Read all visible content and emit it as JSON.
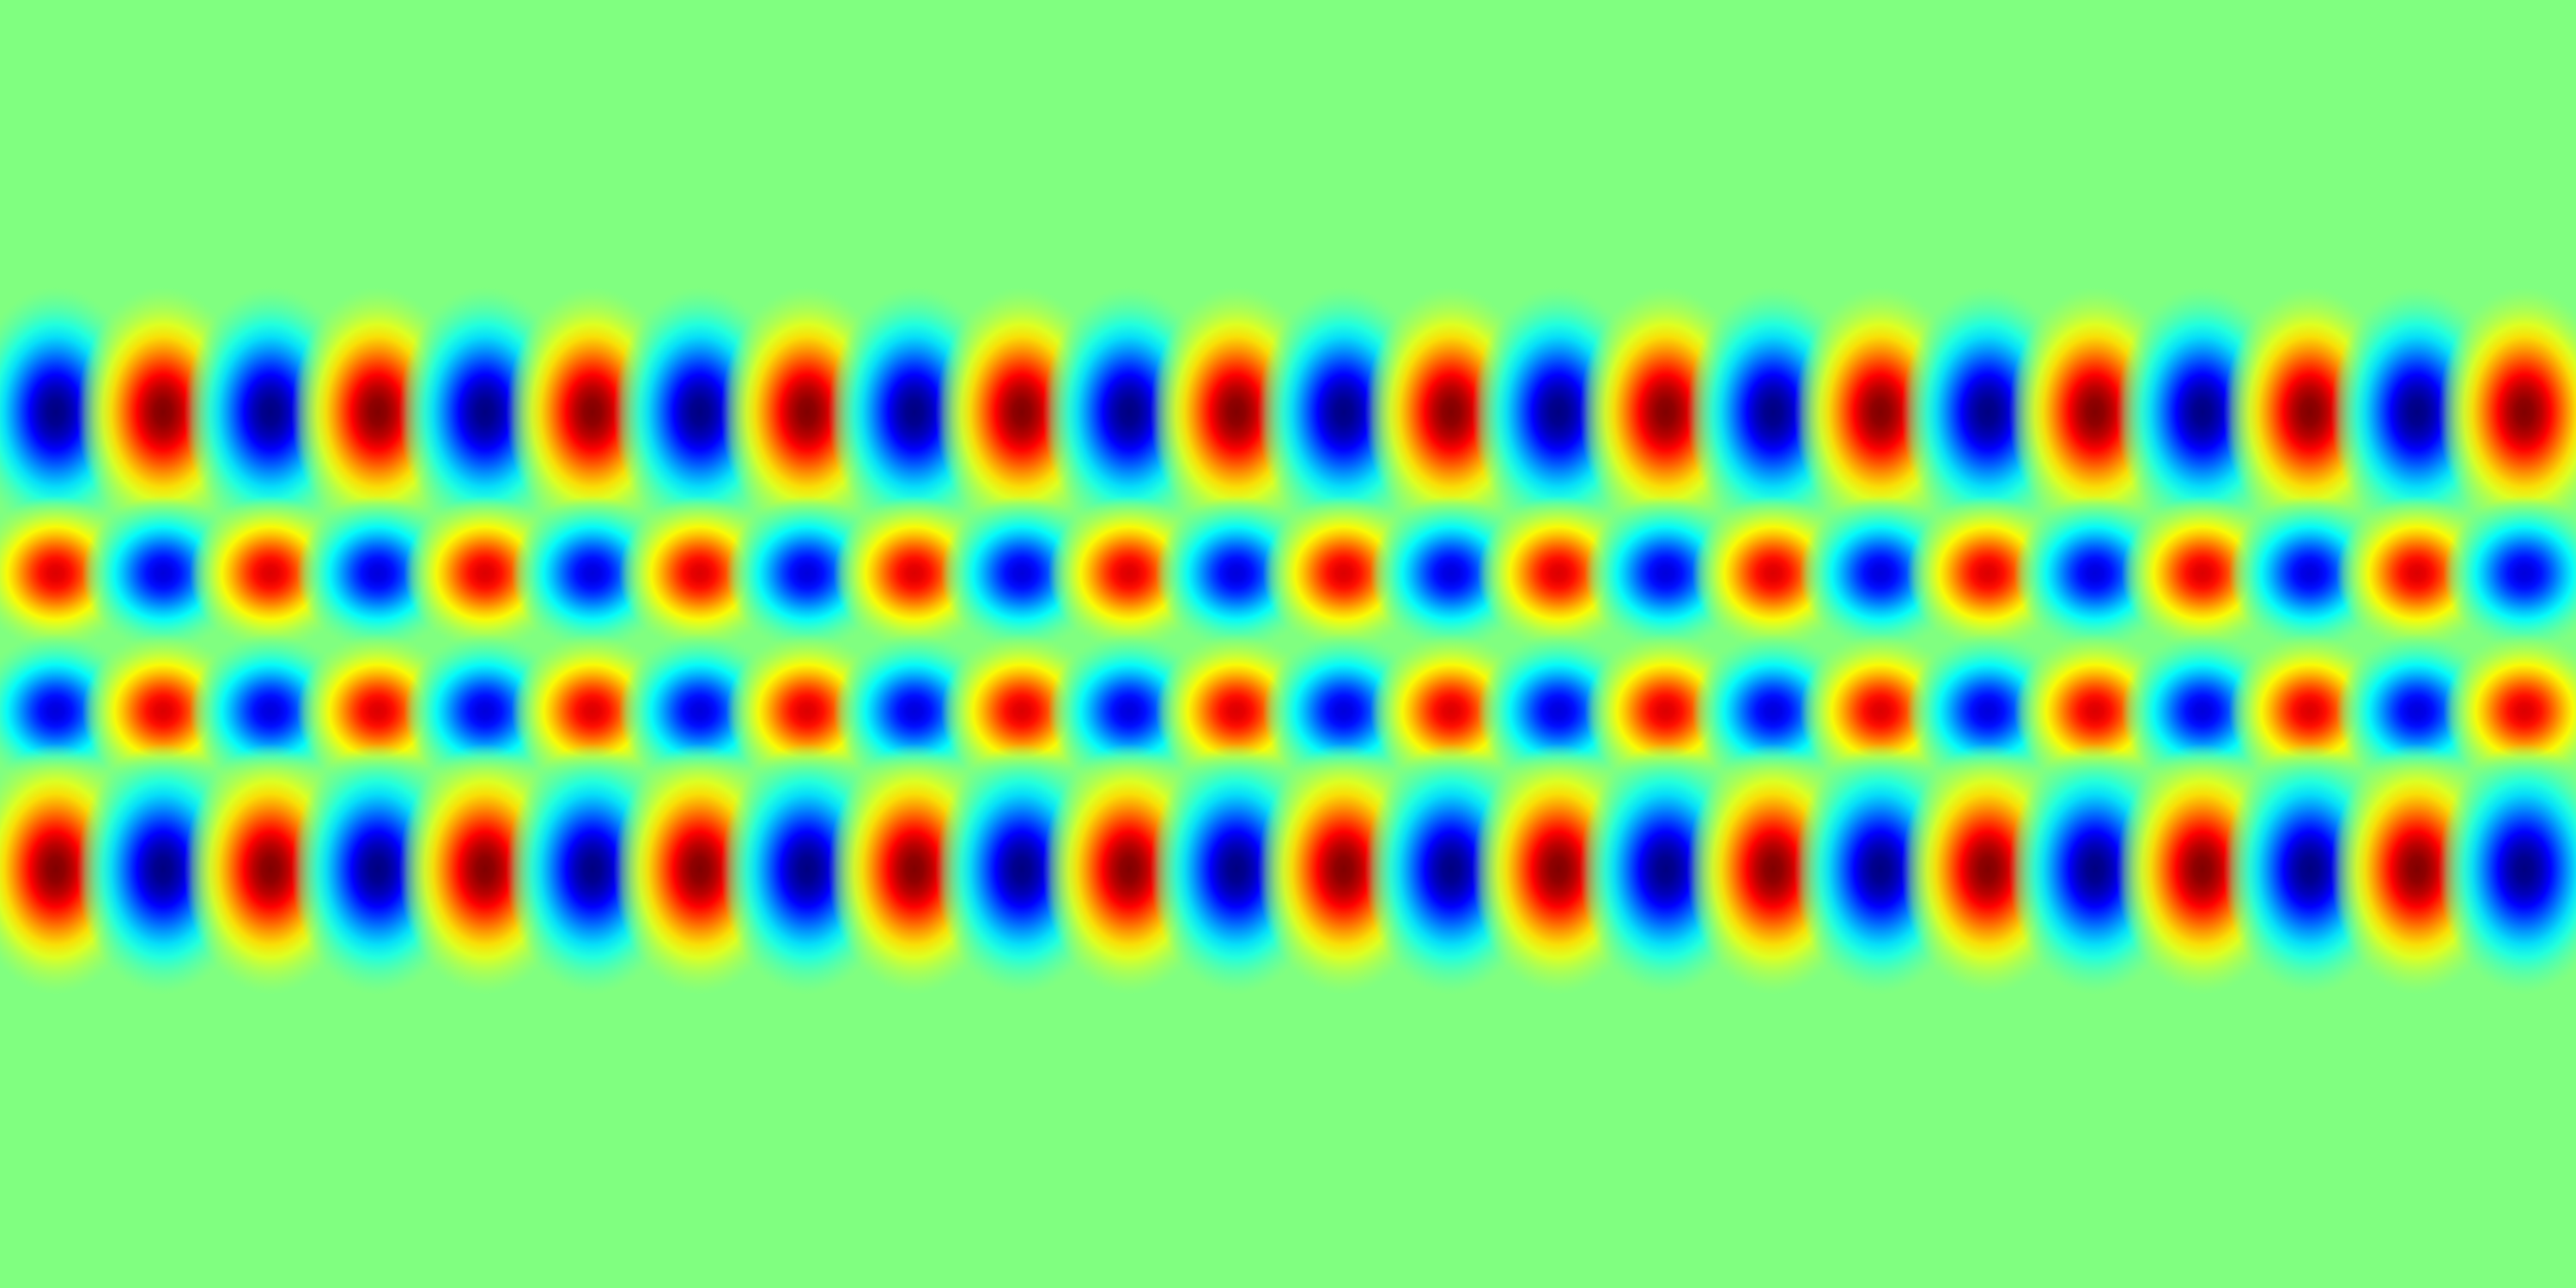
{
  "chart_data": {
    "type": "heatmap",
    "title": "",
    "xlabel": "",
    "ylabel": "",
    "colormap": "jet",
    "background_color": "#80ff80",
    "value_range": [
      -1,
      1
    ],
    "grid": false,
    "legend": "none",
    "x_range": [
      0,
      1
    ],
    "y_range": [
      0,
      1
    ],
    "columns_per_row": 24,
    "rows": [
      {
        "name": "row-1",
        "y_center": 0.32,
        "width_frac": 0.032,
        "height_frac": 0.13,
        "first_sign": -1,
        "amplitude": 1.0
      },
      {
        "name": "row-2",
        "y_center": 0.445,
        "width_frac": 0.03,
        "height_frac": 0.08,
        "first_sign": 1,
        "amplitude": 0.82
      },
      {
        "name": "row-3",
        "y_center": 0.552,
        "width_frac": 0.03,
        "height_frac": 0.08,
        "first_sign": -1,
        "amplitude": 0.82
      },
      {
        "name": "row-4",
        "y_center": 0.675,
        "width_frac": 0.032,
        "height_frac": 0.13,
        "first_sign": 1,
        "amplitude": 1.0
      }
    ]
  }
}
